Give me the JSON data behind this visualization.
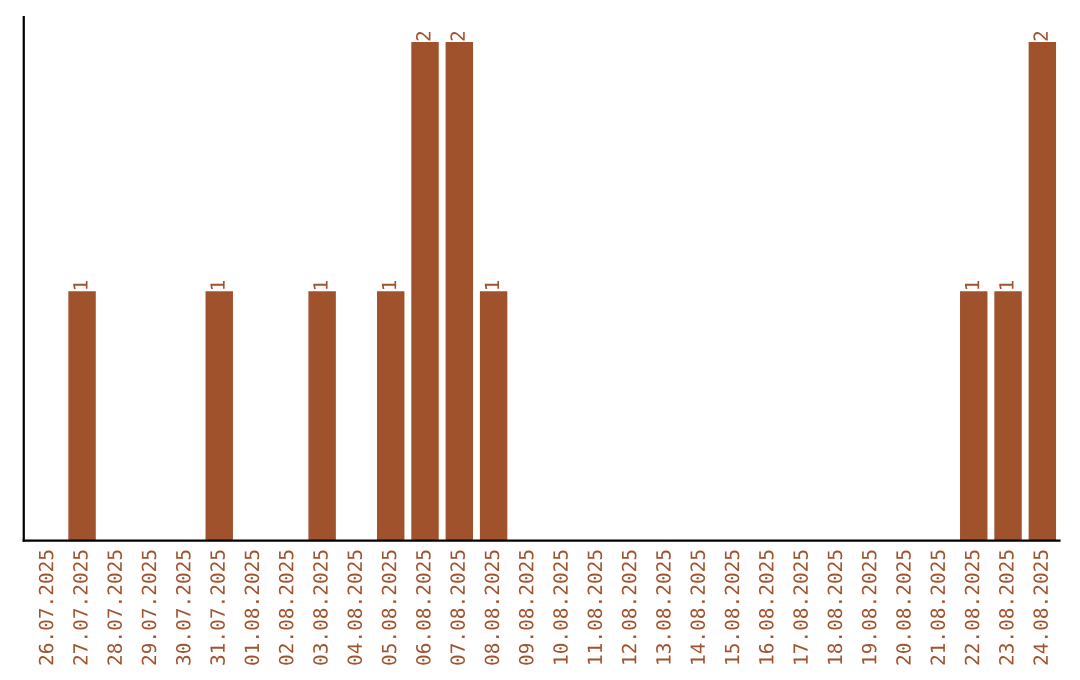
{
  "chart_data": {
    "type": "bar",
    "categories": [
      "26.07.2025",
      "27.07.2025",
      "28.07.2025",
      "29.07.2025",
      "30.07.2025",
      "31.07.2025",
      "01.08.2025",
      "02.08.2025",
      "03.08.2025",
      "04.08.2025",
      "05.08.2025",
      "06.08.2025",
      "07.08.2025",
      "08.08.2025",
      "09.08.2025",
      "10.08.2025",
      "11.08.2025",
      "12.08.2025",
      "13.08.2025",
      "14.08.2025",
      "15.08.2025",
      "16.08.2025",
      "17.08.2025",
      "18.08.2025",
      "19.08.2025",
      "20.08.2025",
      "21.08.2025",
      "22.08.2025",
      "23.08.2025",
      "24.08.2025"
    ],
    "values": [
      0,
      1,
      0,
      0,
      0,
      1,
      0,
      0,
      1,
      0,
      1,
      2,
      2,
      1,
      0,
      0,
      0,
      0,
      0,
      0,
      0,
      0,
      0,
      0,
      0,
      0,
      0,
      1,
      1,
      2
    ],
    "value_labels": [
      null,
      "1",
      null,
      null,
      null,
      "1",
      null,
      null,
      "1",
      null,
      "1",
      "2",
      "2",
      "1",
      null,
      null,
      null,
      null,
      null,
      null,
      null,
      null,
      null,
      null,
      null,
      null,
      null,
      "1",
      "1",
      "2"
    ],
    "color": "#a0522d",
    "ylim": [
      0,
      2.1
    ],
    "tick_labels": "x",
    "grid": false
  }
}
